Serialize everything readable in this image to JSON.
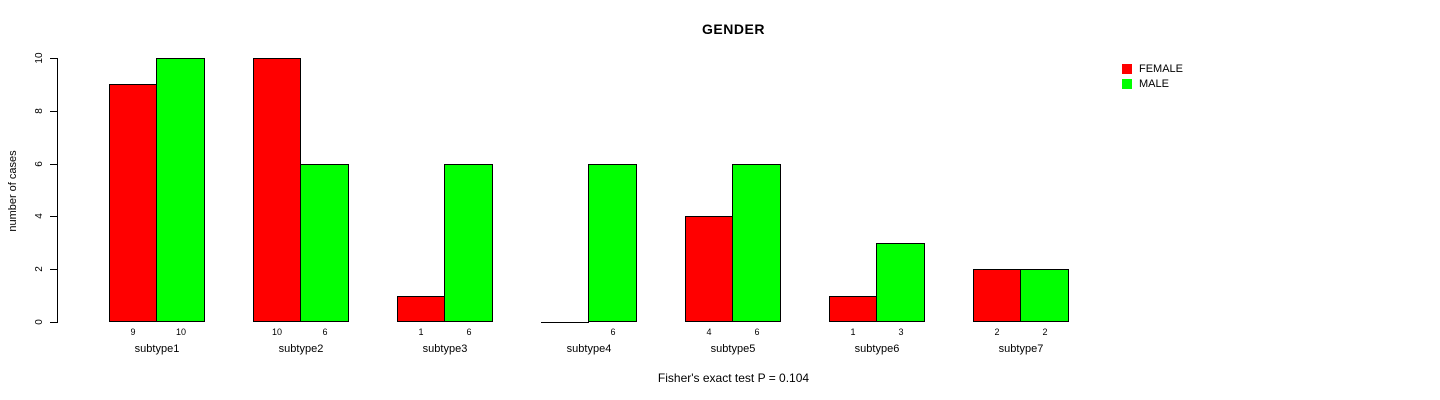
{
  "chart_data": {
    "type": "bar",
    "title": "GENDER",
    "ylabel": "number of cases",
    "xlabel": "",
    "annotation": "Fisher's exact test P = 0.104",
    "categories": [
      "subtype1",
      "subtype2",
      "subtype3",
      "subtype4",
      "subtype5",
      "subtype6",
      "subtype7"
    ],
    "series": [
      {
        "name": "FEMALE",
        "color": "#FF0000",
        "values": [
          9,
          10,
          1,
          0,
          4,
          1,
          2
        ],
        "value_labels": [
          "9",
          "10",
          "1",
          "",
          "4",
          "1",
          "2"
        ]
      },
      {
        "name": "MALE",
        "color": "#00FF00",
        "values": [
          10,
          6,
          6,
          6,
          6,
          3,
          2
        ],
        "value_labels": [
          "10",
          "6",
          "6",
          "6",
          "6",
          "3",
          "2"
        ]
      }
    ],
    "ylim": [
      0,
      10
    ],
    "yticks": [
      0,
      2,
      4,
      6,
      8,
      10
    ],
    "grid": false,
    "legend_position": "right"
  },
  "colors": {
    "background": "#FFFFFF",
    "axis": "#000000",
    "text": "#000000",
    "female": "#FF0000",
    "male": "#00FF00"
  }
}
